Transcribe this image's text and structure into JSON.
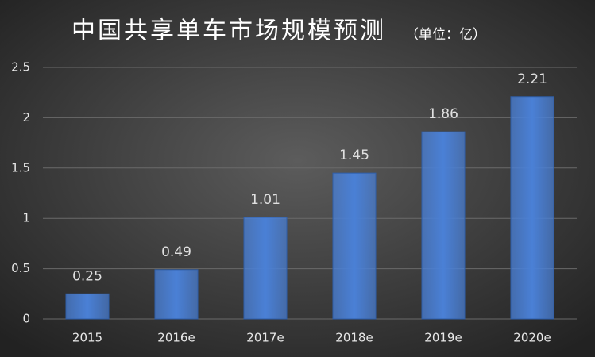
{
  "chart_data": {
    "type": "bar",
    "title": "中国共享单车市场规模预测",
    "subtitle": "（单位：亿）",
    "categories": [
      "2015",
      "2016e",
      "2017e",
      "2018e",
      "2019e",
      "2020e"
    ],
    "values": [
      0.25,
      0.49,
      1.01,
      1.45,
      1.86,
      2.21
    ],
    "color": "#4a80d6",
    "ylim": [
      0,
      2.5
    ],
    "yticks": [
      0,
      0.5,
      1,
      1.5,
      2,
      2.5
    ],
    "grid": true
  }
}
